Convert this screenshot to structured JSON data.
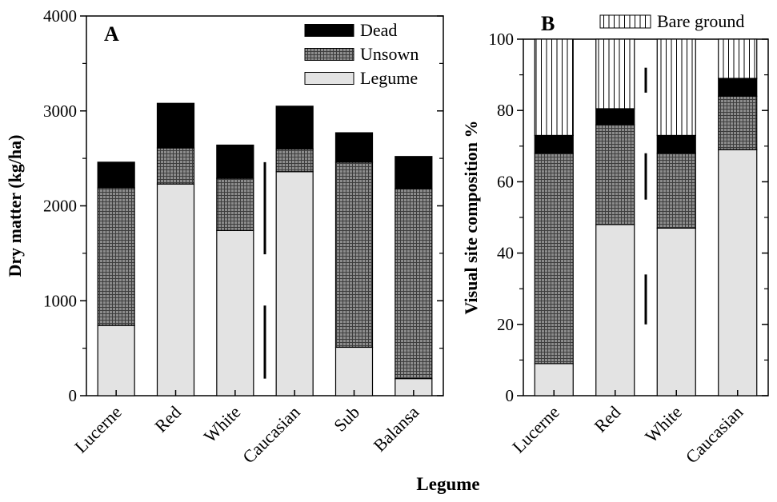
{
  "figure": {
    "xlabel": "Legume"
  },
  "colors": {
    "legume": "#e3e3e3",
    "unsown": "#8c8c8c",
    "dead": "#000000",
    "bare": "#ffffff",
    "axis": "#000000"
  },
  "chart_data": [
    {
      "type": "bar",
      "stacked": true,
      "panel_label": "A",
      "title": "",
      "xlabel": "",
      "ylabel": "Dry matter (kg/ha)",
      "ylim": [
        0,
        4000
      ],
      "yticks": [
        0,
        1000,
        2000,
        3000,
        4000
      ],
      "ytick_labels": [
        "0",
        "1000",
        "2000",
        "3000",
        "4000"
      ],
      "categories": [
        "Lucerne",
        "Red",
        "White",
        "Caucasian",
        "Sub",
        "Balansa"
      ],
      "series": [
        {
          "name": "Legume",
          "pattern": "plain",
          "values": [
            740,
            2230,
            1740,
            2360,
            510,
            180
          ]
        },
        {
          "name": "Unsown",
          "pattern": "grid",
          "values": [
            1450,
            380,
            550,
            240,
            1950,
            2000
          ]
        },
        {
          "name": "Dead",
          "pattern": "solid",
          "values": [
            270,
            470,
            350,
            450,
            310,
            340
          ]
        }
      ],
      "legend": {
        "position": "top-right",
        "order": [
          "Dead",
          "Unsown",
          "Legume"
        ]
      },
      "lsd_bars": [
        {
          "label": "Legume",
          "after_category": "White",
          "from": 180,
          "to": 950
        },
        {
          "label": "Unsown",
          "after_category": "White",
          "from": 1490,
          "to": 2460
        }
      ]
    },
    {
      "type": "bar",
      "stacked": true,
      "panel_label": "B",
      "title": "",
      "xlabel": "",
      "ylabel": "Visual site composition %",
      "ylim": [
        0,
        100
      ],
      "yticks": [
        0,
        20,
        40,
        60,
        80,
        100
      ],
      "ytick_labels": [
        "0",
        "20",
        "40",
        "60",
        "80",
        "100"
      ],
      "categories": [
        "Lucerne",
        "Red",
        "White",
        "Caucasian"
      ],
      "series": [
        {
          "name": "Legume",
          "pattern": "plain",
          "values": [
            9,
            48,
            47,
            69
          ]
        },
        {
          "name": "Unsown",
          "pattern": "grid",
          "values": [
            59,
            28,
            21,
            15
          ]
        },
        {
          "name": "Dead",
          "pattern": "solid",
          "values": [
            5,
            4.5,
            5,
            5
          ]
        },
        {
          "name": "Bare ground",
          "pattern": "vlines",
          "values": [
            27,
            19.5,
            27,
            11
          ]
        }
      ],
      "legend": {
        "position": "top",
        "order": [
          "Bare ground"
        ]
      },
      "lsd_bars": [
        {
          "label": "Legume",
          "after_category": "Red",
          "from": 20,
          "to": 34
        },
        {
          "label": "Unsown",
          "after_category": "Red",
          "from": 55,
          "to": 68
        },
        {
          "label": "Bare ground",
          "after_category": "Red",
          "from": 85,
          "to": 92
        }
      ]
    }
  ]
}
